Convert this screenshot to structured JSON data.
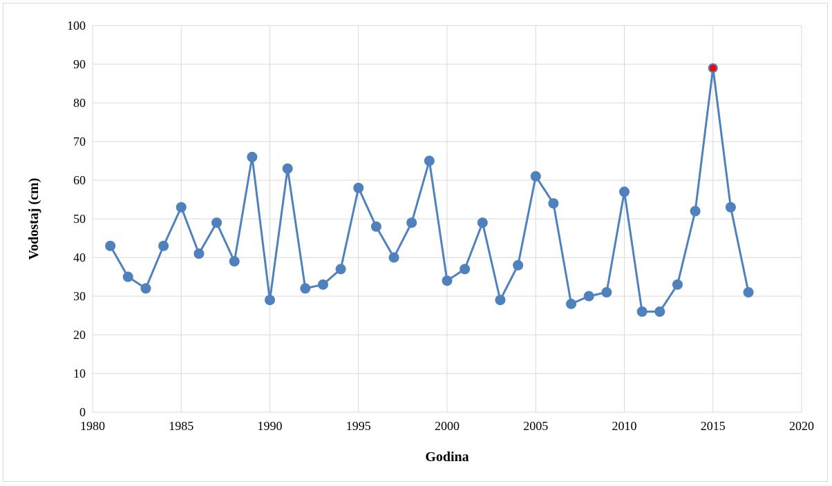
{
  "chart_data": {
    "type": "line",
    "title": "",
    "xlabel": "Godina",
    "ylabel": "Vodostaj (cm)",
    "xlim": [
      1980,
      2020
    ],
    "ylim": [
      0,
      100
    ],
    "x_ticks": [
      1980,
      1985,
      1990,
      1995,
      2000,
      2005,
      2010,
      2015,
      2020
    ],
    "y_ticks": [
      0,
      10,
      20,
      30,
      40,
      50,
      60,
      70,
      80,
      90,
      100
    ],
    "grid": true,
    "legend": "none",
    "colors": {
      "series": "#4f81bd",
      "highlight": "#ff0000"
    },
    "highlight_x": 2015,
    "x": [
      1981,
      1982,
      1983,
      1984,
      1985,
      1986,
      1987,
      1988,
      1989,
      1990,
      1991,
      1992,
      1993,
      1994,
      1995,
      1996,
      1997,
      1998,
      1999,
      2000,
      2001,
      2002,
      2003,
      2004,
      2005,
      2006,
      2007,
      2008,
      2009,
      2010,
      2011,
      2012,
      2013,
      2014,
      2015,
      2016,
      2017
    ],
    "series": [
      {
        "values": [
          43,
          35,
          32,
          43,
          53,
          41,
          49,
          39,
          66,
          29,
          63,
          32,
          33,
          37,
          58,
          48,
          40,
          49,
          65,
          34,
          37,
          49,
          29,
          38,
          61,
          54,
          28,
          30,
          31,
          57,
          26,
          26,
          33,
          52,
          89,
          53,
          31
        ]
      }
    ]
  }
}
